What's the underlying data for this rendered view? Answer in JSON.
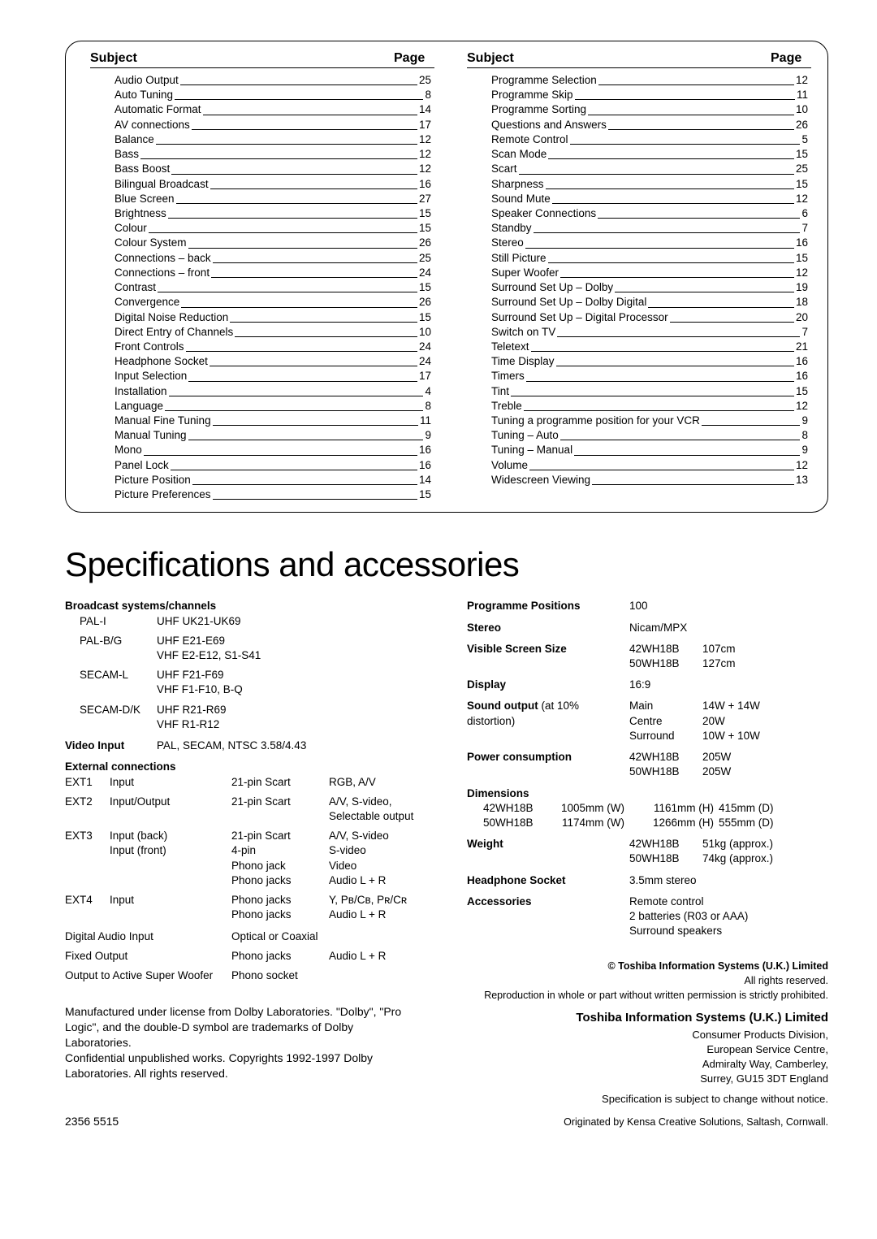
{
  "index_headers": {
    "subject": "Subject",
    "page": "Page"
  },
  "index_left": [
    {
      "s": "Audio Output",
      "p": "25"
    },
    {
      "s": "Auto Tuning",
      "p": "8"
    },
    {
      "s": "Automatic Format",
      "p": "14"
    },
    {
      "s": "AV connections",
      "p": "17"
    },
    {
      "s": "Balance",
      "p": "12"
    },
    {
      "s": "Bass",
      "p": "12"
    },
    {
      "s": "Bass Boost",
      "p": "12"
    },
    {
      "s": "Bilingual Broadcast",
      "p": "16"
    },
    {
      "s": "Blue Screen",
      "p": "27"
    },
    {
      "s": "Brightness",
      "p": "15"
    },
    {
      "s": "Colour",
      "p": "15"
    },
    {
      "s": "Colour System",
      "p": "26"
    },
    {
      "s": "Connections – back",
      "p": "25"
    },
    {
      "s": "Connections – front",
      "p": "24"
    },
    {
      "s": "Contrast",
      "p": "15"
    },
    {
      "s": "Convergence",
      "p": "26"
    },
    {
      "s": "Digital Noise Reduction",
      "p": "15"
    },
    {
      "s": "Direct Entry of Channels",
      "p": "10"
    },
    {
      "s": "Front Controls",
      "p": "24"
    },
    {
      "s": "Headphone Socket",
      "p": "24"
    },
    {
      "s": "Input Selection",
      "p": "17"
    },
    {
      "s": "Installation",
      "p": "4"
    },
    {
      "s": "Language",
      "p": "8"
    },
    {
      "s": "Manual Fine Tuning",
      "p": "11"
    },
    {
      "s": "Manual Tuning",
      "p": "9"
    },
    {
      "s": "Mono",
      "p": "16"
    },
    {
      "s": "Panel Lock",
      "p": "16"
    },
    {
      "s": "Picture Position",
      "p": "14"
    },
    {
      "s": "Picture Preferences",
      "p": "15"
    }
  ],
  "index_right": [
    {
      "s": "Programme Selection",
      "p": "12"
    },
    {
      "s": "Programme Skip",
      "p": "11"
    },
    {
      "s": "Programme Sorting",
      "p": "10"
    },
    {
      "s": "Questions and Answers",
      "p": "26"
    },
    {
      "s": "Remote Control",
      "p": "5"
    },
    {
      "s": "Scan Mode",
      "p": "15"
    },
    {
      "s": "Scart",
      "p": "25"
    },
    {
      "s": "Sharpness",
      "p": "15"
    },
    {
      "s": "Sound Mute",
      "p": "12"
    },
    {
      "s": "Speaker Connections",
      "p": "6"
    },
    {
      "s": "Standby",
      "p": "7"
    },
    {
      "s": "Stereo",
      "p": "16"
    },
    {
      "s": "Still Picture",
      "p": "15"
    },
    {
      "s": "Super Woofer",
      "p": "12"
    },
    {
      "s": "Surround Set Up – Dolby",
      "p": "19"
    },
    {
      "s": "Surround Set Up – Dolby Digital",
      "p": "18"
    },
    {
      "s": "Surround Set Up – Digital Processor",
      "p": "20"
    },
    {
      "s": "Switch on TV",
      "p": "7"
    },
    {
      "s": "Teletext",
      "p": "21"
    },
    {
      "s": "Time Display",
      "p": "16"
    },
    {
      "s": "Timers",
      "p": "16"
    },
    {
      "s": "Tint",
      "p": "15"
    },
    {
      "s": "Treble",
      "p": "12"
    },
    {
      "s": "Tuning a programme position for your VCR",
      "p": "9"
    },
    {
      "s": "Tuning – Auto",
      "p": "8"
    },
    {
      "s": "Tuning – Manual",
      "p": "9"
    },
    {
      "s": "Volume",
      "p": "12"
    },
    {
      "s": "Widescreen Viewing",
      "p": "13"
    }
  ],
  "spec_title": "Specifications and accessories",
  "broadcast": {
    "heading": "Broadcast systems/channels",
    "rows": [
      {
        "a": "PAL-I",
        "b": "UHF UK21-UK69"
      },
      {
        "a": "PAL-B/G",
        "b": "UHF E21-E69\nVHF E2-E12, S1-S41"
      },
      {
        "a": "SECAM-L",
        "b": "UHF F21-F69\nVHF F1-F10, B-Q"
      },
      {
        "a": "SECAM-D/K",
        "b": "UHF R21-R69\nVHF R1-R12"
      }
    ]
  },
  "video_input": {
    "label": "Video Input",
    "value": "PAL, SECAM, NTSC 3.58/4.43"
  },
  "ext_heading": "External connections",
  "ext": [
    {
      "a": "EXT1",
      "b": "Input",
      "c": "21-pin Scart",
      "d": "RGB, A/V"
    },
    {
      "a": "EXT2",
      "b": "Input/Output",
      "c": "21-pin Scart",
      "d": "A/V, S-video,\nSelectable output"
    },
    {
      "a": "EXT3",
      "b": "Input (back)\nInput (front)",
      "c": "21-pin Scart\n4-pin\nPhono jack\nPhono jacks",
      "d": "A/V, S-video\nS-video\nVideo\nAudio L + R"
    },
    {
      "a": "EXT4",
      "b": "Input",
      "c": "Phono jacks\nPhono jacks",
      "d": "Y, Pʙ/Cʙ, Pʀ/Cʀ\nAudio L + R"
    }
  ],
  "dai": {
    "a": "Digital Audio Input",
    "c": "Optical or Coaxial"
  },
  "fixed": {
    "a": "Fixed Output",
    "c": "Phono jacks",
    "d": "Audio L + R"
  },
  "woofer": {
    "a": "Output to Active Super Woofer",
    "c": "Phono socket"
  },
  "right_specs": [
    {
      "k": "Programme Positions",
      "v": "100"
    },
    {
      "k": "Stereo",
      "v": "Nicam/MPX"
    }
  ],
  "visible_screen": {
    "k": "Visible Screen Size",
    "rows": [
      {
        "a": "42WH18B",
        "b": "107cm"
      },
      {
        "a": "50WH18B",
        "b": "127cm"
      }
    ]
  },
  "display": {
    "k": "Display",
    "v": "16:9"
  },
  "sound": {
    "k": "Sound output",
    "note": "(at 10% distortion)",
    "rows": [
      {
        "a": "Main",
        "b": "14W + 14W"
      },
      {
        "a": "Centre",
        "b": "20W"
      },
      {
        "a": "Surround",
        "b": "10W + 10W"
      }
    ]
  },
  "power": {
    "k": "Power consumption",
    "rows": [
      {
        "a": "42WH18B",
        "b": "205W"
      },
      {
        "a": "50WH18B",
        "b": "205W"
      }
    ]
  },
  "dims": {
    "k": "Dimensions",
    "rows": [
      {
        "m": "42WH18B",
        "w": "1005mm (W)",
        "h": "1161mm (H)",
        "d": "415mm (D)"
      },
      {
        "m": "50WH18B",
        "w": "1174mm (W)",
        "h": "1266mm (H)",
        "d": "555mm (D)"
      }
    ]
  },
  "weight": {
    "k": "Weight",
    "rows": [
      {
        "a": "42WH18B",
        "b": "51kg (approx.)"
      },
      {
        "a": "50WH18B",
        "b": "74kg (approx.)"
      }
    ]
  },
  "headphone": {
    "k": "Headphone Socket",
    "v": "3.5mm stereo"
  },
  "accessories": {
    "k": "Accessories",
    "v": "Remote control\n2 batteries (R03 or AAA)\nSurround speakers"
  },
  "copyright": {
    "l1": "© Toshiba Information Systems (U.K.) Limited",
    "l2": "All rights reserved.",
    "l3": "Reproduction in whole or part without written permission is strictly prohibited."
  },
  "legal_left": "Manufactured under license from Dolby Laboratories. \"Dolby\", \"Pro Logic\", and the double-D symbol are trademarks of Dolby Laboratories.\nConfidential unpublished works. Copyrights 1992-1997 Dolby Laboratories. All rights reserved.",
  "company": {
    "title": "Toshiba Information Systems (U.K.) Limited",
    "addr": "Consumer Products Division,\nEuropean Service Centre,\nAdmiralty Way, Camberley,\nSurrey, GU15 3DT England",
    "note": "Specification is subject to change without notice."
  },
  "docnum": "2356 5515",
  "origin": "Originated by Kensa Creative Solutions, Saltash, Cornwall."
}
